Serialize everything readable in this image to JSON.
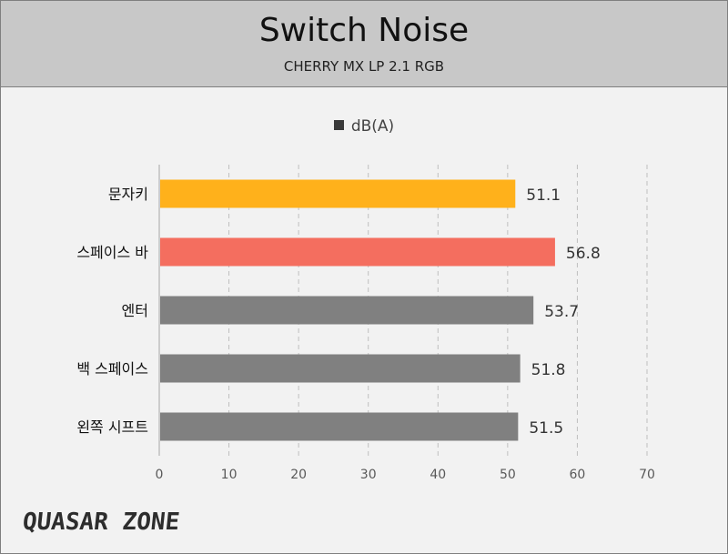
{
  "header": {
    "title": "Switch Noise",
    "subtitle": "CHERRY MX LP 2.1 RGB"
  },
  "brand": {
    "logo_text": "QUASAR ZONE"
  },
  "colors": {
    "header_bg": "#c8c8c8",
    "accent_orange": "#ffb11b",
    "accent_red": "#f46e5f",
    "neutral_gray": "#808080"
  },
  "chart_data": {
    "type": "bar",
    "orientation": "horizontal",
    "title": "Switch Noise",
    "subtitle": "CHERRY MX LP 2.1 RGB",
    "categories": [
      "문자키",
      "스페이스 바",
      "엔터",
      "백 스페이스",
      "왼쪽 시프트"
    ],
    "series": [
      {
        "name": "dB(A)",
        "values": [
          51.1,
          56.8,
          53.7,
          51.8,
          51.5
        ],
        "colors": [
          "#ffb11b",
          "#f46e5f",
          "#808080",
          "#808080",
          "#808080"
        ]
      }
    ],
    "xlim": [
      0,
      70
    ],
    "xticks": [
      0,
      10,
      20,
      30,
      40,
      50,
      60,
      70
    ],
    "grid": "vertical-dashed",
    "legend_position": "top"
  }
}
